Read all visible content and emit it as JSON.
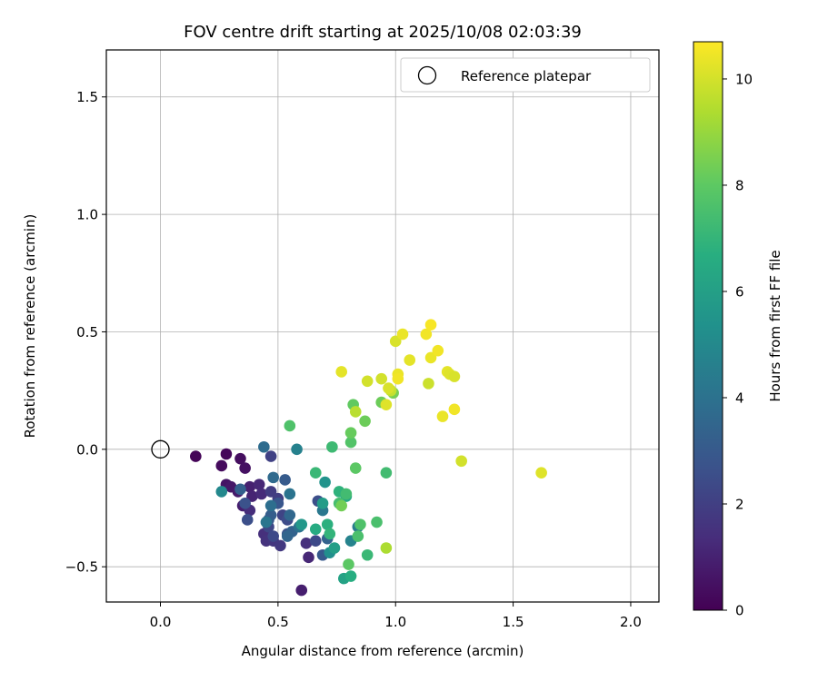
{
  "chart_data": {
    "type": "scatter",
    "title": "FOV centre drift starting at 2025/10/08 02:03:39",
    "xlabel": "Angular distance from reference (arcmin)",
    "ylabel": "Rotation from reference (arcmin)",
    "xlim": [
      -0.23,
      2.12
    ],
    "ylim": [
      -0.65,
      1.7
    ],
    "xticks": [
      0.0,
      0.5,
      1.0,
      1.5,
      2.0
    ],
    "xtick_labels": [
      "0.0",
      "0.5",
      "1.0",
      "1.5",
      "2.0"
    ],
    "yticks": [
      -0.5,
      0.0,
      0.5,
      1.0,
      1.5
    ],
    "ytick_labels": [
      "−0.5",
      "0.0",
      "0.5",
      "1.0",
      "1.5"
    ],
    "grid": true,
    "legend": {
      "position": "top-right",
      "entries": [
        "Reference platepar"
      ]
    },
    "reference_point": {
      "x": 0.0,
      "y": 0.0,
      "label": "Reference platepar"
    },
    "colorbar": {
      "label": "Hours from first FF file",
      "min": 0,
      "max": 10.7,
      "ticks": [
        0,
        2,
        4,
        6,
        8,
        10
      ],
      "tick_labels": [
        "0",
        "2",
        "4",
        "6",
        "8",
        "10"
      ],
      "colormap": "viridis"
    },
    "points": [
      {
        "x": 0.15,
        "y": -0.03,
        "c": 0.1
      },
      {
        "x": 0.28,
        "y": -0.02,
        "c": 0.2
      },
      {
        "x": 0.26,
        "y": -0.07,
        "c": 0.3
      },
      {
        "x": 0.34,
        "y": -0.04,
        "c": 0.4
      },
      {
        "x": 0.36,
        "y": -0.08,
        "c": 0.5
      },
      {
        "x": 0.28,
        "y": -0.15,
        "c": 0.6
      },
      {
        "x": 0.3,
        "y": -0.16,
        "c": 0.7
      },
      {
        "x": 0.33,
        "y": -0.18,
        "c": 0.8
      },
      {
        "x": 0.35,
        "y": -0.24,
        "c": 0.9
      },
      {
        "x": 0.38,
        "y": -0.16,
        "c": 1.0
      },
      {
        "x": 0.39,
        "y": -0.2,
        "c": 1.1
      },
      {
        "x": 0.42,
        "y": -0.15,
        "c": 1.2
      },
      {
        "x": 0.43,
        "y": -0.19,
        "c": 1.3
      },
      {
        "x": 0.38,
        "y": -0.26,
        "c": 1.4
      },
      {
        "x": 0.44,
        "y": -0.36,
        "c": 1.5
      },
      {
        "x": 0.45,
        "y": -0.39,
        "c": 1.6
      },
      {
        "x": 0.48,
        "y": -0.39,
        "c": 1.7
      },
      {
        "x": 0.51,
        "y": -0.41,
        "c": 1.8
      },
      {
        "x": 0.47,
        "y": -0.18,
        "c": 1.9
      },
      {
        "x": 0.5,
        "y": -0.21,
        "c": 2.0
      },
      {
        "x": 0.47,
        "y": -0.03,
        "c": 2.1
      },
      {
        "x": 0.52,
        "y": -0.28,
        "c": 2.2
      },
      {
        "x": 0.46,
        "y": -0.33,
        "c": 2.3
      },
      {
        "x": 0.48,
        "y": -0.37,
        "c": 2.4
      },
      {
        "x": 0.54,
        "y": -0.3,
        "c": 2.5
      },
      {
        "x": 0.37,
        "y": -0.3,
        "c": 2.6
      },
      {
        "x": 0.36,
        "y": -0.23,
        "c": 2.7
      },
      {
        "x": 0.54,
        "y": -0.36,
        "c": 2.8
      },
      {
        "x": 0.5,
        "y": -0.23,
        "c": 2.9
      },
      {
        "x": 0.46,
        "y": -0.3,
        "c": 3.0
      },
      {
        "x": 0.53,
        "y": -0.13,
        "c": 3.1
      },
      {
        "x": 0.47,
        "y": -0.28,
        "c": 3.2
      },
      {
        "x": 0.34,
        "y": -0.17,
        "c": 3.3
      },
      {
        "x": 0.56,
        "y": -0.35,
        "c": 3.4
      },
      {
        "x": 0.54,
        "y": -0.37,
        "c": 3.5
      },
      {
        "x": 0.55,
        "y": -0.28,
        "c": 3.6
      },
      {
        "x": 0.48,
        "y": -0.12,
        "c": 3.7
      },
      {
        "x": 0.44,
        "y": 0.01,
        "c": 3.8
      },
      {
        "x": 0.47,
        "y": -0.24,
        "c": 3.9
      },
      {
        "x": 0.59,
        "y": -0.33,
        "c": 4.0
      },
      {
        "x": 0.55,
        "y": -0.19,
        "c": 4.1
      },
      {
        "x": 0.45,
        "y": -0.31,
        "c": 4.2
      },
      {
        "x": 0.6,
        "y": -0.6,
        "c": 0.9
      },
      {
        "x": 0.63,
        "y": -0.46,
        "c": 1.2
      },
      {
        "x": 0.62,
        "y": -0.4,
        "c": 1.5
      },
      {
        "x": 0.66,
        "y": -0.39,
        "c": 2.4
      },
      {
        "x": 0.67,
        "y": -0.22,
        "c": 2.6
      },
      {
        "x": 0.69,
        "y": -0.45,
        "c": 3.0
      },
      {
        "x": 0.71,
        "y": -0.38,
        "c": 3.4
      },
      {
        "x": 0.69,
        "y": -0.26,
        "c": 4.3
      },
      {
        "x": 0.58,
        "y": 0.0,
        "c": 4.7
      },
      {
        "x": 0.26,
        "y": -0.18,
        "c": 5.0
      },
      {
        "x": 0.72,
        "y": -0.44,
        "c": 5.3
      },
      {
        "x": 0.7,
        "y": -0.14,
        "c": 5.5
      },
      {
        "x": 0.6,
        "y": -0.32,
        "c": 5.7
      },
      {
        "x": 0.69,
        "y": -0.23,
        "c": 5.9
      },
      {
        "x": 0.74,
        "y": -0.42,
        "c": 6.0
      },
      {
        "x": 0.78,
        "y": -0.55,
        "c": 6.2
      },
      {
        "x": 0.81,
        "y": -0.39,
        "c": 4.8
      },
      {
        "x": 0.84,
        "y": -0.33,
        "c": 4.5
      },
      {
        "x": 0.79,
        "y": -0.2,
        "c": 6.4
      },
      {
        "x": 0.66,
        "y": -0.34,
        "c": 6.6
      },
      {
        "x": 0.71,
        "y": -0.32,
        "c": 6.8
      },
      {
        "x": 0.72,
        "y": -0.36,
        "c": 7.0
      },
      {
        "x": 0.76,
        "y": -0.18,
        "c": 6.9
      },
      {
        "x": 0.81,
        "y": -0.54,
        "c": 6.7
      },
      {
        "x": 0.66,
        "y": -0.1,
        "c": 7.2
      },
      {
        "x": 0.73,
        "y": 0.01,
        "c": 7.3
      },
      {
        "x": 0.79,
        "y": -0.19,
        "c": 7.4
      },
      {
        "x": 0.76,
        "y": -0.23,
        "c": 7.5
      },
      {
        "x": 0.84,
        "y": -0.37,
        "c": 7.6
      },
      {
        "x": 0.85,
        "y": -0.32,
        "c": 7.7
      },
      {
        "x": 0.88,
        "y": -0.45,
        "c": 7.2
      },
      {
        "x": 0.92,
        "y": -0.31,
        "c": 7.6
      },
      {
        "x": 0.96,
        "y": -0.1,
        "c": 7.4
      },
      {
        "x": 0.8,
        "y": -0.49,
        "c": 8.0
      },
      {
        "x": 0.83,
        "y": -0.08,
        "c": 8.0
      },
      {
        "x": 0.77,
        "y": -0.24,
        "c": 8.4
      },
      {
        "x": 0.55,
        "y": 0.1,
        "c": 7.7
      },
      {
        "x": 0.81,
        "y": 0.03,
        "c": 7.8
      },
      {
        "x": 0.81,
        "y": 0.07,
        "c": 8.2
      },
      {
        "x": 0.87,
        "y": 0.12,
        "c": 8.3
      },
      {
        "x": 0.82,
        "y": 0.19,
        "c": 8.1
      },
      {
        "x": 0.94,
        "y": 0.2,
        "c": 8.3
      },
      {
        "x": 0.99,
        "y": 0.24,
        "c": 8.5
      },
      {
        "x": 0.83,
        "y": 0.16,
        "c": 9.6
      },
      {
        "x": 0.96,
        "y": -0.42,
        "c": 9.4
      },
      {
        "x": 0.96,
        "y": 0.19,
        "c": 10.2
      },
      {
        "x": 0.88,
        "y": 0.29,
        "c": 10.0
      },
      {
        "x": 0.98,
        "y": 0.25,
        "c": 9.8
      },
      {
        "x": 0.94,
        "y": 0.3,
        "c": 10.0
      },
      {
        "x": 0.97,
        "y": 0.26,
        "c": 10.1
      },
      {
        "x": 0.77,
        "y": 0.33,
        "c": 10.3
      },
      {
        "x": 1.0,
        "y": 0.46,
        "c": 10.1
      },
      {
        "x": 1.03,
        "y": 0.49,
        "c": 10.4
      },
      {
        "x": 1.06,
        "y": 0.38,
        "c": 10.3
      },
      {
        "x": 1.01,
        "y": 0.32,
        "c": 10.4
      },
      {
        "x": 1.01,
        "y": 0.3,
        "c": 10.5
      },
      {
        "x": 1.13,
        "y": 0.49,
        "c": 10.5
      },
      {
        "x": 1.15,
        "y": 0.53,
        "c": 10.6
      },
      {
        "x": 1.15,
        "y": 0.39,
        "c": 10.4
      },
      {
        "x": 1.18,
        "y": 0.42,
        "c": 10.5
      },
      {
        "x": 1.14,
        "y": 0.28,
        "c": 9.9
      },
      {
        "x": 1.22,
        "y": 0.33,
        "c": 10.3
      },
      {
        "x": 1.23,
        "y": 0.32,
        "c": 10.2
      },
      {
        "x": 1.25,
        "y": 0.31,
        "c": 10.1
      },
      {
        "x": 1.2,
        "y": 0.14,
        "c": 10.4
      },
      {
        "x": 1.25,
        "y": 0.17,
        "c": 10.5
      },
      {
        "x": 1.28,
        "y": -0.05,
        "c": 10.0
      },
      {
        "x": 1.62,
        "y": -0.1,
        "c": 10.2
      }
    ]
  }
}
